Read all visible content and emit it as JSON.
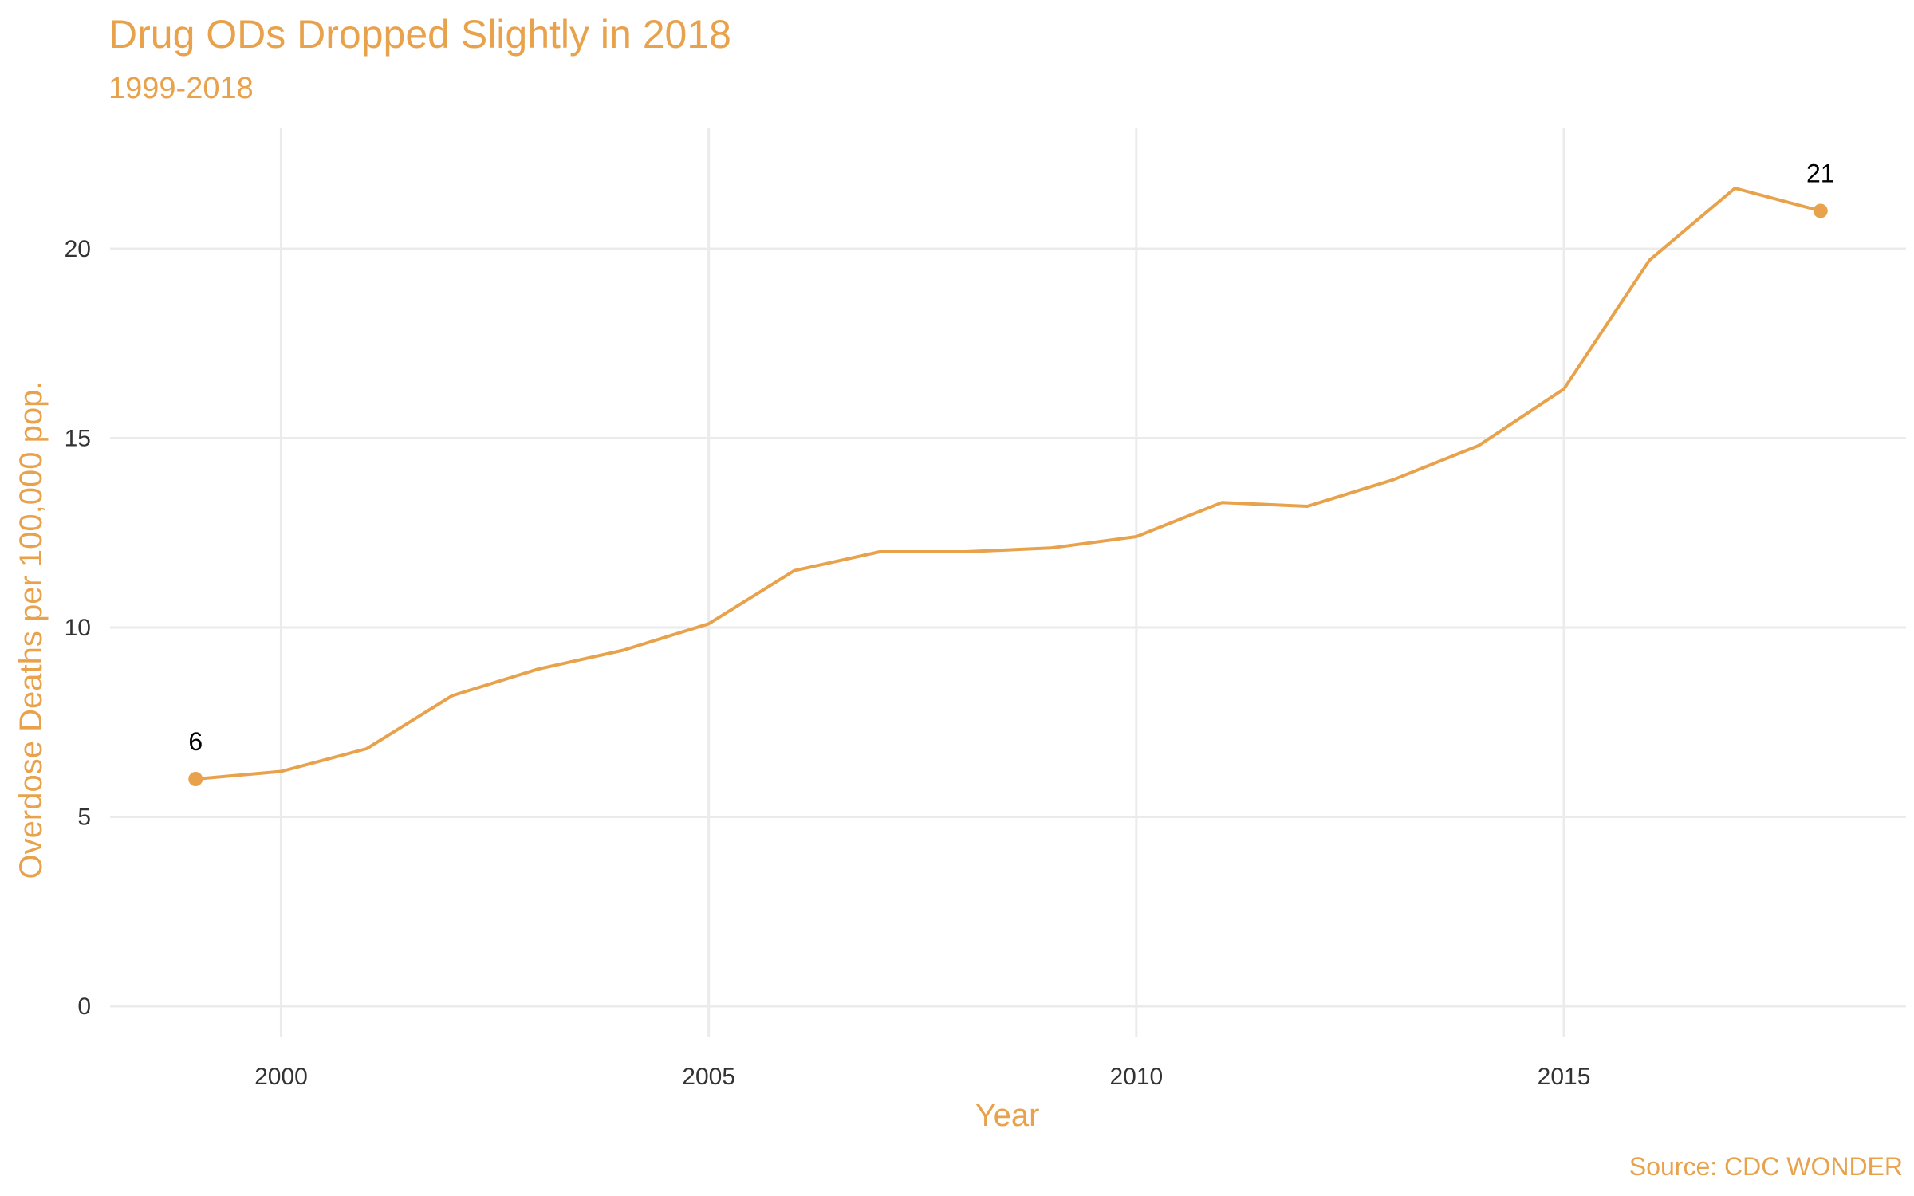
{
  "chart_data": {
    "type": "line",
    "title": "Drug ODs Dropped Slightly in 2018",
    "subtitle": "1999-2018",
    "caption": "Source: CDC WONDER",
    "xlabel": "Year",
    "ylabel": "Overdose Deaths per 100,000 pop.",
    "x": [
      1999,
      2000,
      2001,
      2002,
      2003,
      2004,
      2005,
      2006,
      2007,
      2008,
      2009,
      2010,
      2011,
      2012,
      2013,
      2014,
      2015,
      2016,
      2017,
      2018
    ],
    "series": [
      {
        "values": [
          6.0,
          6.2,
          6.8,
          8.2,
          8.9,
          9.4,
          10.1,
          11.5,
          12.0,
          12.0,
          12.1,
          12.4,
          13.3,
          13.2,
          13.9,
          14.8,
          16.3,
          19.7,
          21.6,
          21.0
        ]
      }
    ],
    "xlim": [
      1998,
      2019
    ],
    "ylim": [
      -0.8,
      23.2
    ],
    "x_ticks": [
      2000,
      2005,
      2010,
      2015
    ],
    "y_ticks": [
      0,
      5,
      10,
      15,
      20
    ],
    "highlighted_points": [
      {
        "x": 1999,
        "y": 6,
        "label": "6"
      },
      {
        "x": 2018,
        "y": 21,
        "label": "21"
      }
    ],
    "line_color": "#E8A24C",
    "grid": true,
    "legend": "none"
  }
}
